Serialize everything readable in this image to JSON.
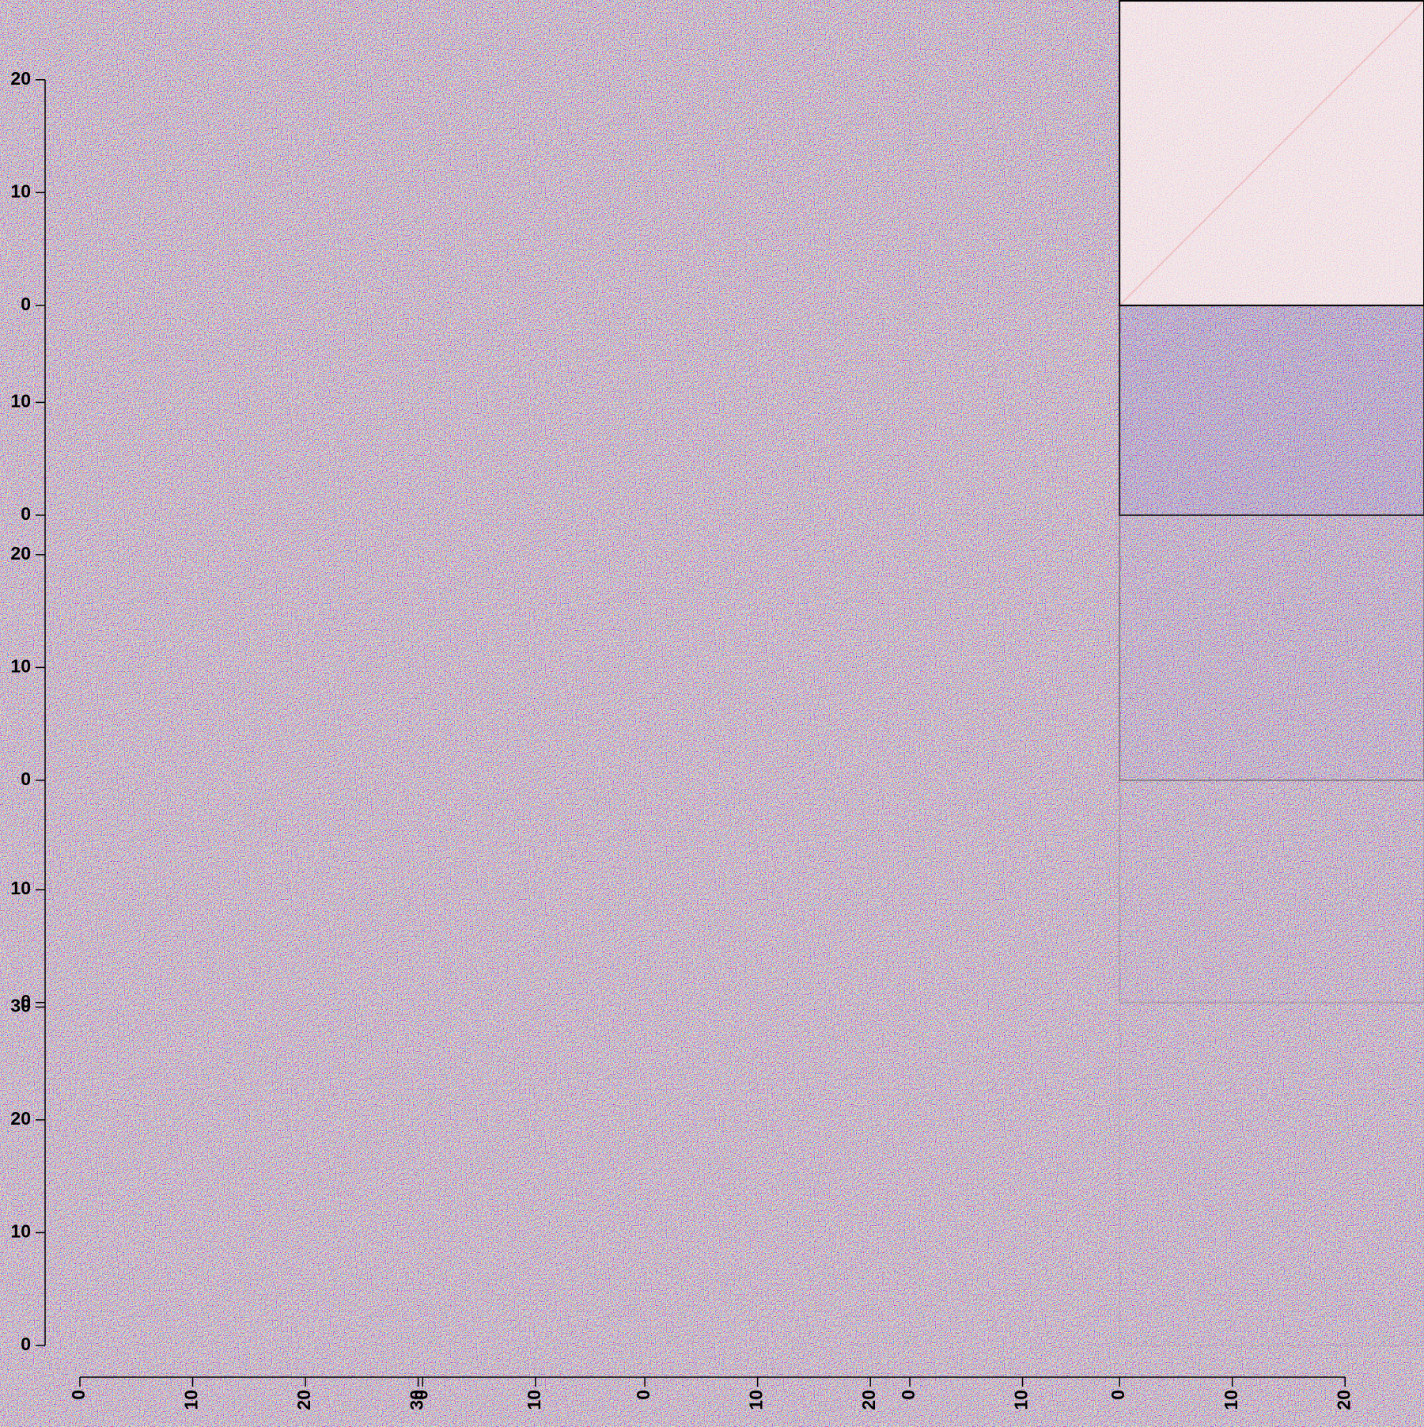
{
  "chart_data": {
    "type": "heatmap",
    "blocks": [
      {
        "lim": [
          0,
          30.4
        ],
        "ticks": [
          0,
          10,
          20,
          30
        ]
      },
      {
        "lim": [
          0,
          19.7
        ],
        "ticks": [
          0,
          10
        ]
      },
      {
        "lim": [
          0,
          23.5
        ],
        "ticks": [
          0,
          10,
          20
        ]
      },
      {
        "lim": [
          0,
          18.6
        ],
        "ticks": [
          0,
          10
        ]
      },
      {
        "lim": [
          0,
          27
        ],
        "ticks": [
          0,
          10,
          20
        ]
      }
    ],
    "colors": {
      "low": "#1a1ae6",
      "mid": "#ffffff",
      "high": "#e61a1a"
    }
  }
}
